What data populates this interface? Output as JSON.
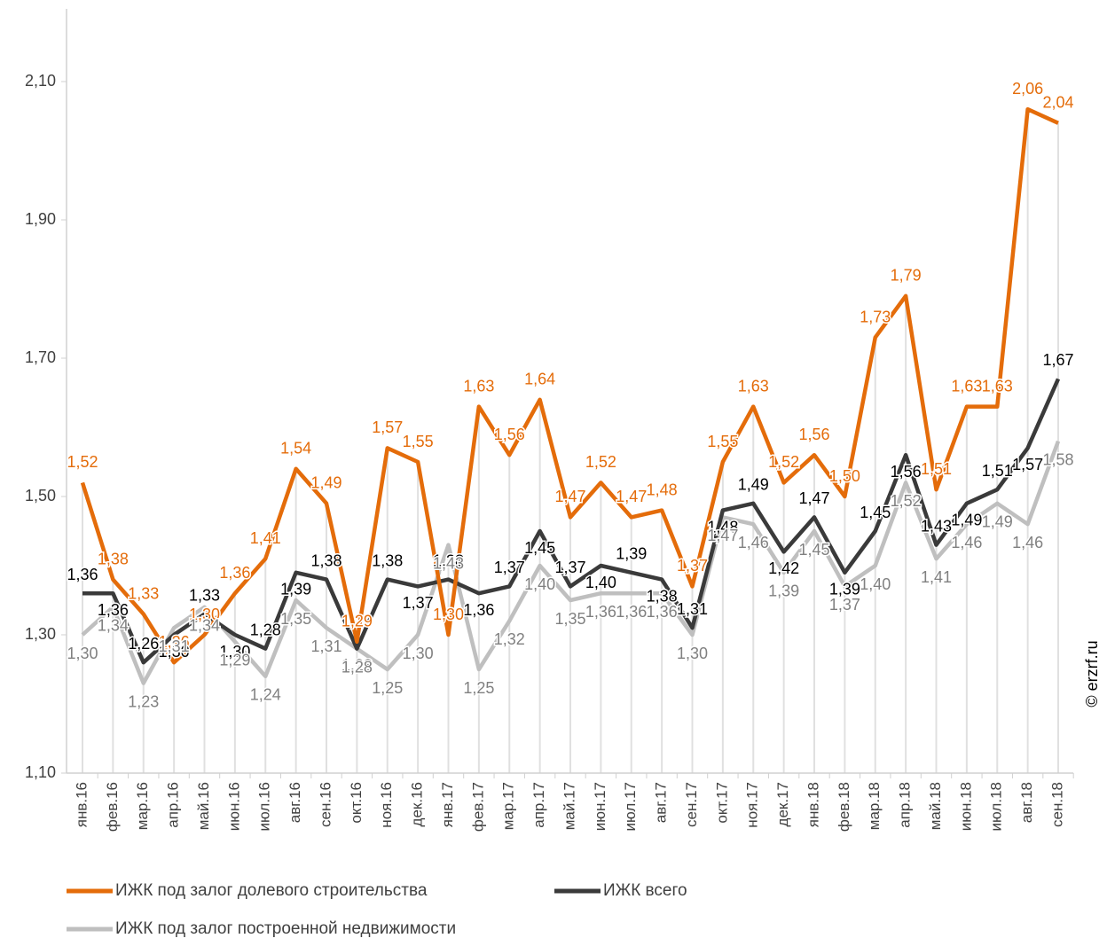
{
  "chart_data": {
    "type": "line",
    "categories": [
      "янв.16",
      "фев.16",
      "мар.16",
      "апр.16",
      "май.16",
      "июн.16",
      "июл.16",
      "авг.16",
      "сен.16",
      "окт.16",
      "ноя.16",
      "дек.16",
      "янв.17",
      "фев.17",
      "мар.17",
      "апр.17",
      "май.17",
      "июн.17",
      "июл.17",
      "авг.17",
      "сен.17",
      "окт.17",
      "ноя.17",
      "дек.17",
      "янв.18",
      "фев.18",
      "мар.18",
      "апр.18",
      "май.18",
      "июн.18",
      "июл.18",
      "авг.18",
      "сен.18"
    ],
    "series": [
      {
        "name": "ИЖК под залог долевого строительства",
        "color": "#e46c0a",
        "values": [
          1.52,
          1.38,
          1.33,
          1.26,
          1.3,
          1.36,
          1.41,
          1.54,
          1.49,
          1.29,
          1.57,
          1.55,
          1.3,
          1.63,
          1.56,
          1.64,
          1.47,
          1.52,
          1.47,
          1.48,
          1.37,
          1.55,
          1.63,
          1.52,
          1.56,
          1.5,
          1.73,
          1.79,
          1.51,
          1.63,
          1.63,
          2.06,
          2.04
        ],
        "value_labels": [
          "1,52",
          "1,38",
          "1,33",
          "1,26",
          "1,30",
          "1,36",
          "1,41",
          "1,54",
          "1,49",
          "1,29",
          "1,57",
          "1,55",
          "1,30",
          "1,63",
          "1,56",
          "1,64",
          "1,47",
          "1,52",
          "1,47",
          "1,48",
          "1,37",
          "1,55",
          "1,63",
          "1,52",
          "1,56",
          "1,50",
          "1,73",
          "1,79",
          "1,51",
          "1,63",
          "1,63",
          "2,06",
          "2,04"
        ]
      },
      {
        "name": "ИЖК всего",
        "color": "#3a3a3a",
        "values": [
          1.36,
          1.36,
          1.26,
          1.3,
          1.33,
          1.3,
          1.28,
          1.39,
          1.38,
          1.28,
          1.38,
          1.37,
          1.38,
          1.36,
          1.37,
          1.45,
          1.37,
          1.4,
          1.39,
          1.38,
          1.31,
          1.48,
          1.49,
          1.42,
          1.47,
          1.39,
          1.45,
          1.56,
          1.43,
          1.49,
          1.51,
          1.57,
          1.67
        ],
        "value_labels": [
          "1,36",
          "1,36",
          "1,26",
          "1,30",
          "1,33",
          "1,30",
          "1,28",
          "1,39",
          "1,38",
          "1,28",
          "1,38",
          "1,37",
          "1,38",
          "1,36",
          "1,37",
          "1,45",
          "1,37",
          "1,40",
          "1,39",
          "1,38",
          "1,31",
          "1,48",
          "1,49",
          "1,42",
          "1,47",
          "1,39",
          "1,45",
          "1,56",
          "1,43",
          "1,49",
          "1,51",
          "1,57",
          "1,67"
        ]
      },
      {
        "name": "ИЖК под залог построенной недвижимости",
        "color": "#bfbfbf",
        "values": [
          1.3,
          1.34,
          1.23,
          1.31,
          1.34,
          1.29,
          1.24,
          1.35,
          1.31,
          1.28,
          1.25,
          1.3,
          1.43,
          1.25,
          1.32,
          1.4,
          1.35,
          1.36,
          1.36,
          1.36,
          1.3,
          1.47,
          1.46,
          1.39,
          1.45,
          1.37,
          1.4,
          1.52,
          1.41,
          1.46,
          1.49,
          1.46,
          1.58
        ],
        "value_labels": [
          "1,30",
          "1,34",
          "1,23",
          "1,31",
          "1,34",
          "1,29",
          "1,24",
          "1,35",
          "1,31",
          "1,28",
          "1,25",
          "1,30",
          "1,43",
          "1,25",
          "1,32",
          "1,40",
          "1,35",
          "1,36",
          "1,36",
          "1,36",
          "1,30",
          "1,47",
          "1,46",
          "1,39",
          "1,45",
          "1,37",
          "1,40",
          "1,52",
          "1,41",
          "1,46",
          "1,49",
          "1,46",
          "1,58"
        ]
      }
    ],
    "ylim": [
      1.1,
      2.2
    ],
    "yticks": [
      {
        "value": 1.1,
        "label": "1,10"
      },
      {
        "value": 1.3,
        "label": "1,30"
      },
      {
        "value": 1.5,
        "label": "1,50"
      },
      {
        "value": 1.7,
        "label": "1,70"
      },
      {
        "value": 1.9,
        "label": "1,90"
      },
      {
        "value": 2.1,
        "label": "2,10"
      }
    ],
    "annotation": "© erzrf.ru"
  }
}
